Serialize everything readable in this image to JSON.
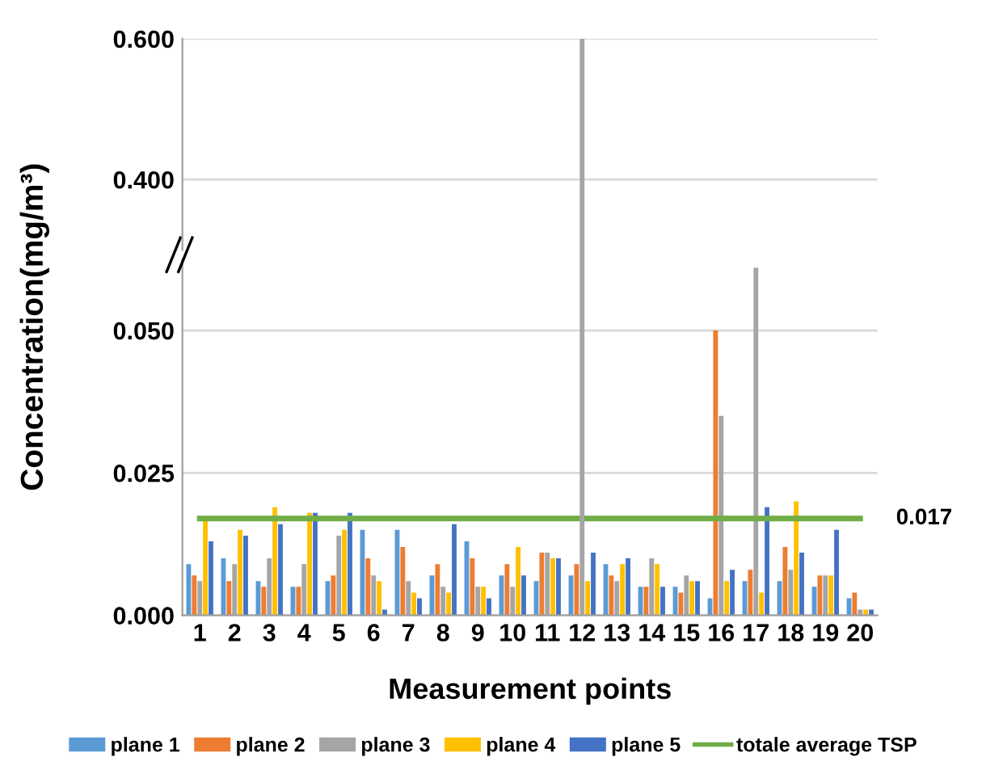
{
  "chart_data": [
    {
      "type": "bar",
      "ylabel": "Concentration(mg/m³)",
      "categories": [
        "1",
        "2",
        "3",
        "4",
        "5",
        "6",
        "7",
        "8",
        "9",
        "10",
        "11",
        "12",
        "13",
        "14",
        "15",
        "16",
        "17",
        "18",
        "19",
        "20"
      ],
      "series": [
        {
          "color": "#a5a5a5",
          "values": [
            null,
            null,
            null,
            null,
            null,
            null,
            null,
            null,
            null,
            null,
            null,
            0.6,
            null,
            null,
            null,
            null,
            null,
            null,
            null,
            null
          ]
        }
      ],
      "ylim": [
        0.3,
        0.6
      ],
      "yticks": [
        {
          "value": 0.4,
          "label": "0.400"
        },
        {
          "value": 0.6,
          "label": "0.600"
        }
      ],
      "tick_labels": "y",
      "grid": "y"
    },
    {
      "type": "bar",
      "xlabel": "Measurement points",
      "categories": [
        "1",
        "2",
        "3",
        "4",
        "5",
        "6",
        "7",
        "8",
        "9",
        "10",
        "11",
        "12",
        "13",
        "14",
        "15",
        "16",
        "17",
        "18",
        "19",
        "20"
      ],
      "series": [
        {
          "name": "plane 1",
          "color": "#5b9bd5",
          "values": [
            0.009,
            0.01,
            0.006,
            0.005,
            0.006,
            0.015,
            0.015,
            0.007,
            0.013,
            0.007,
            0.006,
            0.007,
            0.009,
            0.005,
            0.005,
            0.003,
            0.006,
            0.006,
            0.005,
            0.003
          ]
        },
        {
          "name": "plane 2",
          "color": "#ed7d31",
          "values": [
            0.007,
            0.006,
            0.005,
            0.005,
            0.007,
            0.01,
            0.012,
            0.009,
            0.01,
            0.009,
            0.011,
            0.009,
            0.007,
            0.005,
            0.004,
            0.05,
            0.008,
            0.012,
            0.007,
            0.004
          ]
        },
        {
          "name": "plane 3",
          "color": "#a5a5a5",
          "values": [
            0.006,
            0.009,
            0.01,
            0.009,
            0.014,
            0.007,
            0.006,
            0.005,
            0.005,
            0.005,
            0.011,
            null,
            0.006,
            0.01,
            0.007,
            0.035,
            0.061,
            0.008,
            0.007,
            0.001
          ]
        },
        {
          "name": "plane 4",
          "color": "#ffc000",
          "values": [
            0.017,
            0.015,
            0.019,
            0.018,
            0.015,
            0.006,
            0.004,
            0.004,
            0.005,
            0.012,
            0.01,
            0.006,
            0.009,
            0.009,
            0.006,
            0.006,
            0.004,
            0.02,
            0.007,
            0.001
          ]
        },
        {
          "name": "plane 5",
          "color": "#4472c4",
          "values": [
            0.013,
            0.014,
            0.016,
            0.018,
            0.018,
            0.001,
            0.003,
            0.016,
            0.003,
            0.007,
            0.01,
            0.011,
            0.01,
            0.005,
            0.006,
            0.008,
            0.019,
            0.011,
            0.015,
            0.001
          ]
        },
        {
          "name": "totale average TSP",
          "type": "line",
          "color": "#70ad47",
          "values": [
            0.017,
            0.017,
            0.017,
            0.017,
            0.017,
            0.017,
            0.017,
            0.017,
            0.017,
            0.017,
            0.017,
            0.017,
            0.017,
            0.017,
            0.017,
            0.017,
            0.017,
            0.017,
            0.017,
            0.017
          ]
        }
      ],
      "ylim": [
        0,
        0.0625
      ],
      "yticks": [
        {
          "value": 0,
          "label": "0.000"
        },
        {
          "value": 0.025,
          "label": "0.025"
        },
        {
          "value": 0.05,
          "label": "0.050"
        }
      ],
      "annotations": [
        {
          "text": "0.017",
          "x": "20",
          "y": 0.017
        }
      ],
      "grid": "y",
      "legend": "bottom"
    }
  ]
}
